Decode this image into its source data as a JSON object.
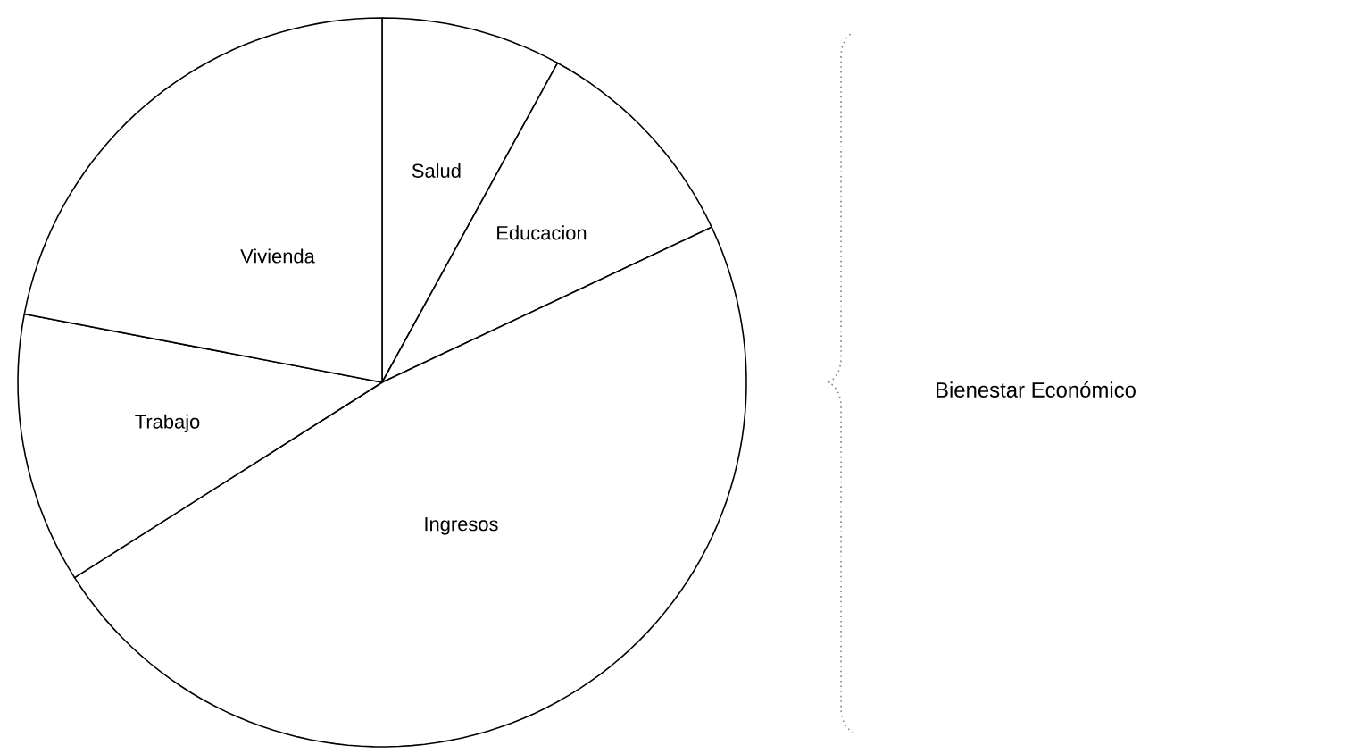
{
  "chart_data": {
    "type": "pie",
    "categories": [
      "Salud",
      "Educacion",
      "Ingresos",
      "Trabajo",
      "Vivienda"
    ],
    "values": [
      8,
      10,
      48,
      12,
      22
    ],
    "colors": [
      "#ffffff",
      "#ffffff",
      "#ffffff",
      "#ffffff",
      "#ffffff"
    ],
    "annotations": [
      "Bienestar  Económico"
    ]
  }
}
